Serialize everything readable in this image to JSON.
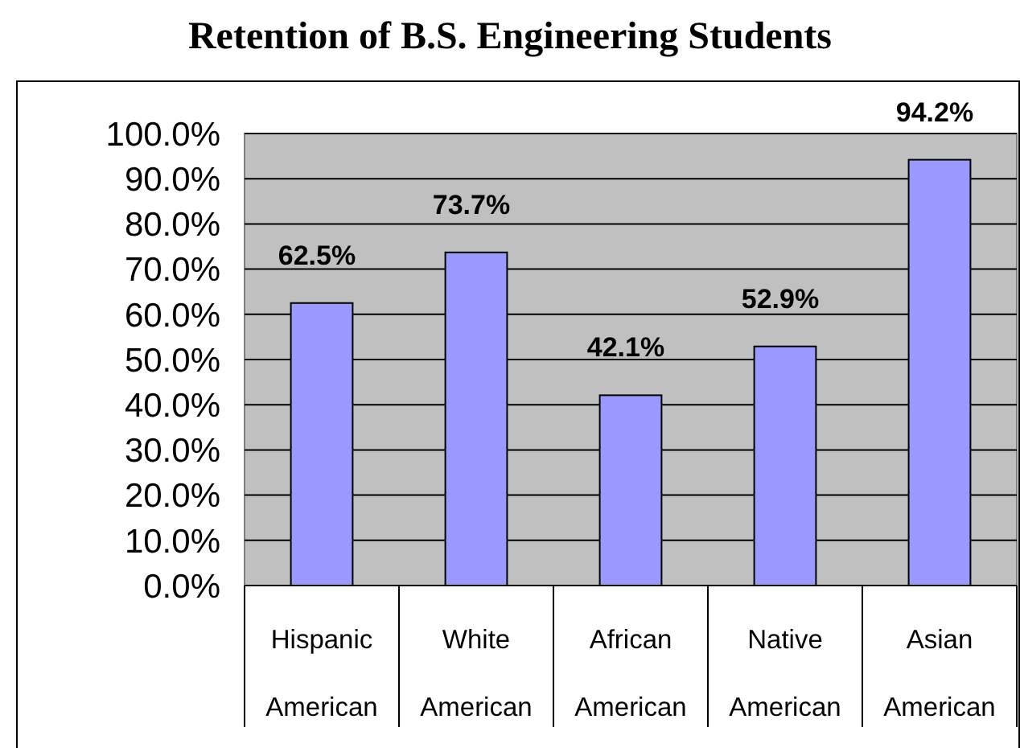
{
  "chart_data": {
    "type": "bar",
    "title": "Retention of B.S. Engineering Students",
    "categories": [
      "Hispanic American",
      "White American",
      "African American",
      "Native American",
      "Asian American"
    ],
    "values": [
      62.5,
      73.7,
      42.1,
      52.9,
      94.2
    ],
    "color": "#9999ff",
    "value_labels": [
      "62.5%",
      "73.7%",
      "42.1%",
      "52.9%",
      "94.2%"
    ],
    "ylim": [
      0,
      100
    ],
    "yticks": [
      {
        "value": 0,
        "label": "0.0%"
      },
      {
        "value": 10,
        "label": "10.0%"
      },
      {
        "value": 20,
        "label": "20.0%"
      },
      {
        "value": 30,
        "label": "30.0%"
      },
      {
        "value": 40,
        "label": "40.0%"
      },
      {
        "value": 50,
        "label": "50.0%"
      },
      {
        "value": 60,
        "label": "60.0%"
      },
      {
        "value": 70,
        "label": "70.0%"
      },
      {
        "value": 80,
        "label": "80.0%"
      },
      {
        "value": 90,
        "label": "90.0%"
      },
      {
        "value": 100,
        "label": "100.0%"
      }
    ],
    "grid": "y"
  }
}
